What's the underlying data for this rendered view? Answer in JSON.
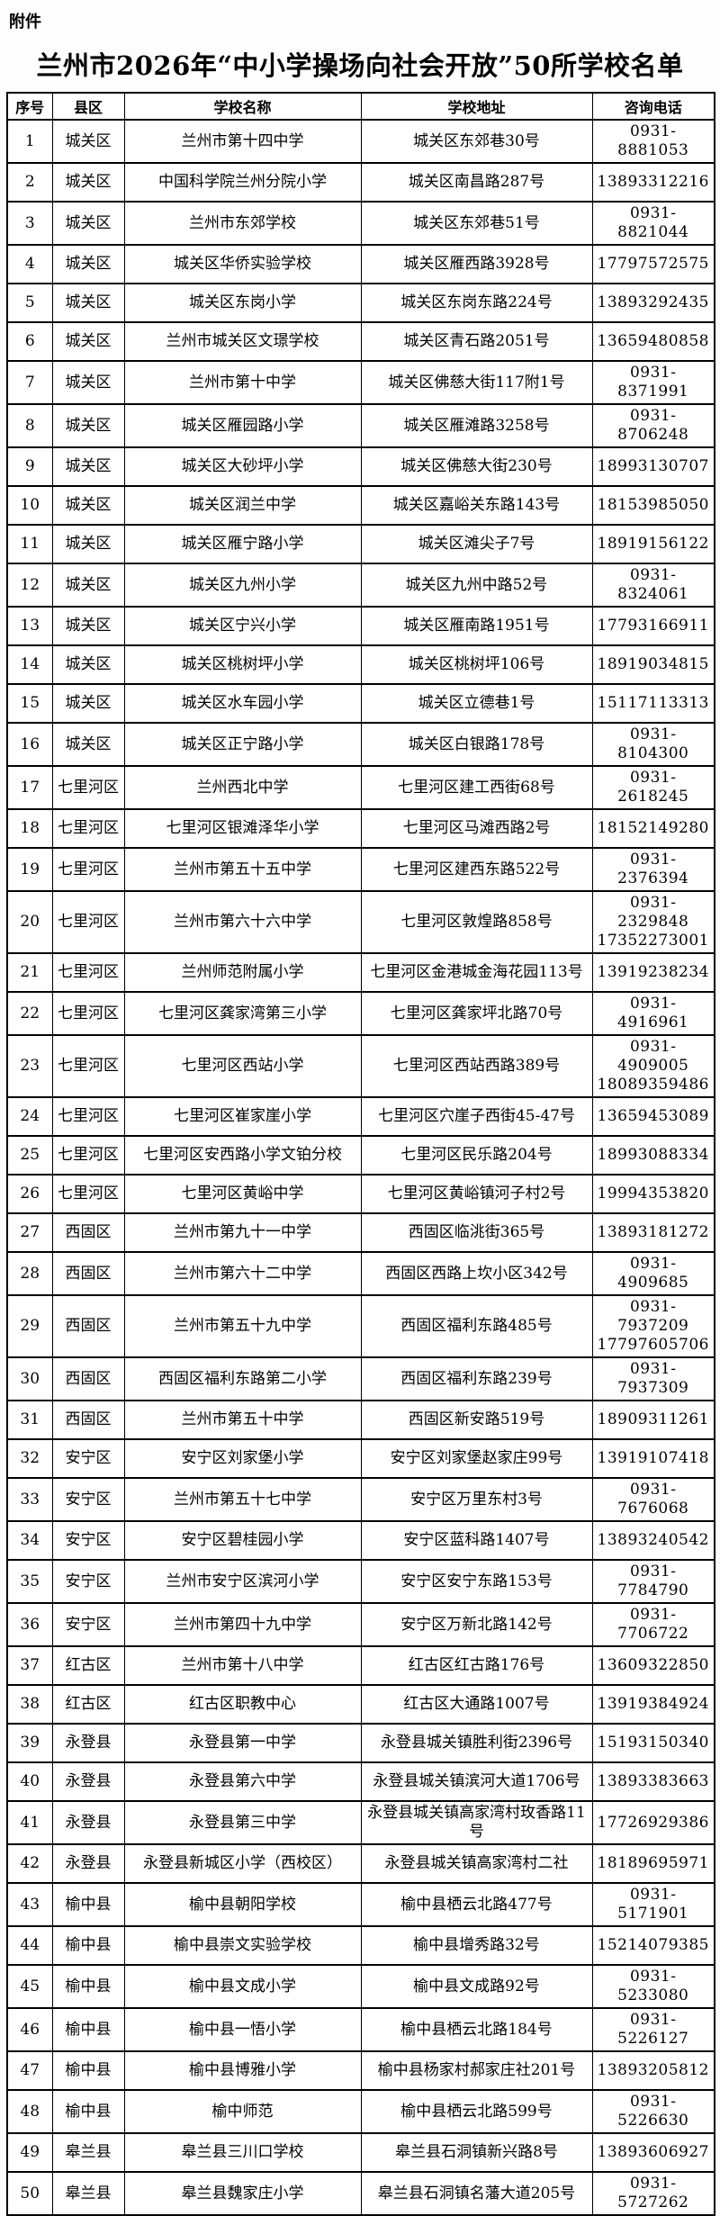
{
  "page": {
    "attachment_label": "附件",
    "title": "兰州市2026年“中小学操场向社会开放”50所学校名单"
  },
  "table": {
    "columns": [
      "序号",
      "县区",
      "学校名称",
      "学校地址",
      "咨询电话"
    ],
    "rows": [
      {
        "no": "1",
        "district": "城关区",
        "school": "兰州市第十四中学",
        "address": "城关区东郊巷30号",
        "phone": "0931-8881053"
      },
      {
        "no": "2",
        "district": "城关区",
        "school": "中国科学院兰州分院小学",
        "address": "城关区南昌路287号",
        "phone": "13893312216"
      },
      {
        "no": "3",
        "district": "城关区",
        "school": "兰州市东郊学校",
        "address": "城关区东郊巷51号",
        "phone": "0931-8821044"
      },
      {
        "no": "4",
        "district": "城关区",
        "school": "城关区华侨实验学校",
        "address": "城关区雁西路3928号",
        "phone": "17797572575"
      },
      {
        "no": "5",
        "district": "城关区",
        "school": "城关区东岗小学",
        "address": "城关区东岗东路224号",
        "phone": "13893292435"
      },
      {
        "no": "6",
        "district": "城关区",
        "school": "兰州市城关区文璟学校",
        "address": "城关区青石路2051号",
        "phone": "13659480858"
      },
      {
        "no": "7",
        "district": "城关区",
        "school": "兰州市第十中学",
        "address": "城关区佛慈大街117附1号",
        "phone": "0931-8371991"
      },
      {
        "no": "8",
        "district": "城关区",
        "school": "城关区雁园路小学",
        "address": "城关区雁滩路3258号",
        "phone": "0931-8706248"
      },
      {
        "no": "9",
        "district": "城关区",
        "school": "城关区大砂坪小学",
        "address": "城关区佛慈大街230号",
        "phone": "18993130707"
      },
      {
        "no": "10",
        "district": "城关区",
        "school": "城关区润兰中学",
        "address": "城关区嘉峪关东路143号",
        "phone": "18153985050"
      },
      {
        "no": "11",
        "district": "城关区",
        "school": "城关区雁宁路小学",
        "address": "城关区滩尖子7号",
        "phone": "18919156122"
      },
      {
        "no": "12",
        "district": "城关区",
        "school": "城关区九州小学",
        "address": "城关区九州中路52号",
        "phone": "0931-8324061"
      },
      {
        "no": "13",
        "district": "城关区",
        "school": "城关区宁兴小学",
        "address": "城关区雁南路1951号",
        "phone": "17793166911"
      },
      {
        "no": "14",
        "district": "城关区",
        "school": "城关区桃树坪小学",
        "address": "城关区桃树坪106号",
        "phone": "18919034815"
      },
      {
        "no": "15",
        "district": "城关区",
        "school": "城关区水车园小学",
        "address": "城关区立德巷1号",
        "phone": "15117113313"
      },
      {
        "no": "16",
        "district": "城关区",
        "school": "城关区正宁路小学",
        "address": "城关区白银路178号",
        "phone": "0931-8104300"
      },
      {
        "no": "17",
        "district": "七里河区",
        "school": "兰州西北中学",
        "address": "七里河区建工西街68号",
        "phone": "0931-2618245"
      },
      {
        "no": "18",
        "district": "七里河区",
        "school": "七里河区银滩泽华小学",
        "address": "七里河区马滩西路2号",
        "phone": "18152149280"
      },
      {
        "no": "19",
        "district": "七里河区",
        "school": "兰州市第五十五中学",
        "address": "七里河区建西东路522号",
        "phone": "0931-2376394"
      },
      {
        "no": "20",
        "district": "七里河区",
        "school": "兰州市第六十六中学",
        "address": "七里河区敦煌路858号",
        "phone": "0931-2329848\n17352273001"
      },
      {
        "no": "21",
        "district": "七里河区",
        "school": "兰州师范附属小学",
        "address": "七里河区金港城金海花园113号",
        "phone": "13919238234"
      },
      {
        "no": "22",
        "district": "七里河区",
        "school": "七里河区龚家湾第三小学",
        "address": "七里河区龚家坪北路70号",
        "phone": "0931-4916961"
      },
      {
        "no": "23",
        "district": "七里河区",
        "school": "七里河区西站小学",
        "address": "七里河区西站西路389号",
        "phone": "0931-4909005\n18089359486"
      },
      {
        "no": "24",
        "district": "七里河区",
        "school": "七里河区崔家崖小学",
        "address": "七里河区穴崖子西街45-47号",
        "phone": "13659453089"
      },
      {
        "no": "25",
        "district": "七里河区",
        "school": "七里河区安西路小学文铂分校",
        "address": "七里河区民乐路204号",
        "phone": "18993088334"
      },
      {
        "no": "26",
        "district": "七里河区",
        "school": "七里河区黄峪中学",
        "address": "七里河区黄峪镇河子村2号",
        "phone": "19994353820"
      },
      {
        "no": "27",
        "district": "西固区",
        "school": "兰州市第九十一中学",
        "address": "西固区临洮街365号",
        "phone": "13893181272"
      },
      {
        "no": "28",
        "district": "西固区",
        "school": "兰州市第六十二中学",
        "address": "西固区西路上坎小区342号",
        "phone": "0931-4909685"
      },
      {
        "no": "29",
        "district": "西固区",
        "school": "兰州市第五十九中学",
        "address": "西固区福利东路485号",
        "phone": "0931-7937209\n17797605706"
      },
      {
        "no": "30",
        "district": "西固区",
        "school": "西固区福利东路第二小学",
        "address": "西固区福利东路239号",
        "phone": "0931-7937309"
      },
      {
        "no": "31",
        "district": "西固区",
        "school": "兰州市第五十中学",
        "address": "西固区新安路519号",
        "phone": "18909311261"
      },
      {
        "no": "32",
        "district": "安宁区",
        "school": "安宁区刘家堡小学",
        "address": "安宁区刘家堡赵家庄99号",
        "phone": "13919107418"
      },
      {
        "no": "33",
        "district": "安宁区",
        "school": "兰州市第五十七中学",
        "address": "安宁区万里东村3号",
        "phone": "0931-7676068"
      },
      {
        "no": "34",
        "district": "安宁区",
        "school": "安宁区碧桂园小学",
        "address": "安宁区蓝科路1407号",
        "phone": "13893240542"
      },
      {
        "no": "35",
        "district": "安宁区",
        "school": "兰州市安宁区滨河小学",
        "address": "安宁区安宁东路153号",
        "phone": "0931-7784790"
      },
      {
        "no": "36",
        "district": "安宁区",
        "school": "兰州市第四十九中学",
        "address": "安宁区万新北路142号",
        "phone": "0931-7706722"
      },
      {
        "no": "37",
        "district": "红古区",
        "school": "兰州市第十八中学",
        "address": "红古区红古路176号",
        "phone": "13609322850"
      },
      {
        "no": "38",
        "district": "红古区",
        "school": "红古区职教中心",
        "address": "红古区大通路1007号",
        "phone": "13919384924"
      },
      {
        "no": "39",
        "district": "永登县",
        "school": "永登县第一中学",
        "address": "永登县城关镇胜利街2396号",
        "phone": "15193150340"
      },
      {
        "no": "40",
        "district": "永登县",
        "school": "永登县第六中学",
        "address": "永登县城关镇滨河大道1706号",
        "phone": "13893383663"
      },
      {
        "no": "41",
        "district": "永登县",
        "school": "永登县第三中学",
        "address": "永登县城关镇高家湾村玫香路11号",
        "phone": "17726929386"
      },
      {
        "no": "42",
        "district": "永登县",
        "school": "永登县新城区小学（西校区）",
        "address": "永登县城关镇高家湾村二社",
        "phone": "18189695971"
      },
      {
        "no": "43",
        "district": "榆中县",
        "school": "榆中县朝阳学校",
        "address": "榆中县栖云北路477号",
        "phone": "0931-5171901"
      },
      {
        "no": "44",
        "district": "榆中县",
        "school": "榆中县崇文实验学校",
        "address": "榆中县增秀路32号",
        "phone": "15214079385"
      },
      {
        "no": "45",
        "district": "榆中县",
        "school": "榆中县文成小学",
        "address": "榆中县文成路92号",
        "phone": "0931-5233080"
      },
      {
        "no": "46",
        "district": "榆中县",
        "school": "榆中县一悟小学",
        "address": "榆中县栖云北路184号",
        "phone": "0931-5226127"
      },
      {
        "no": "47",
        "district": "榆中县",
        "school": "榆中县博雅小学",
        "address": "榆中县杨家村郝家庄社201号",
        "phone": "13893205812"
      },
      {
        "no": "48",
        "district": "榆中县",
        "school": "榆中师范",
        "address": "榆中县栖云北路599号",
        "phone": "0931-5226630"
      },
      {
        "no": "49",
        "district": "皋兰县",
        "school": "皋兰县三川口学校",
        "address": "皋兰县石洞镇新兴路8号",
        "phone": "13893606927"
      },
      {
        "no": "50",
        "district": "皋兰县",
        "school": "皋兰县魏家庄小学",
        "address": "皋兰县石洞镇名藩大道205号",
        "phone": "0931-5727262"
      }
    ]
  }
}
